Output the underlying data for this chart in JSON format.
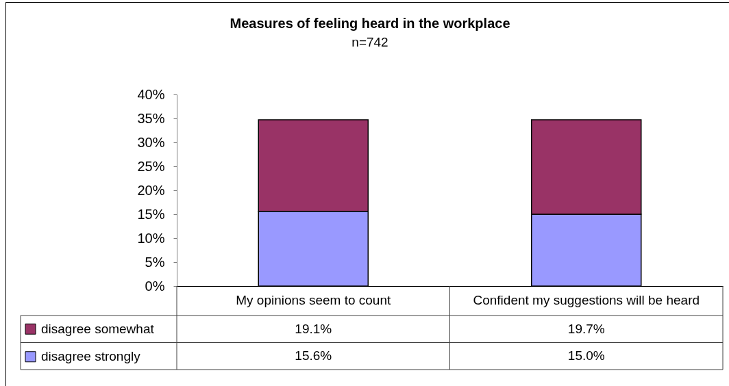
{
  "chart_data": {
    "type": "bar",
    "title": "Measures of feeling heard in the workplace",
    "subtitle": "n=742",
    "categories": [
      "My opinions seem to count",
      "Confident my suggestions will be heard"
    ],
    "stacked": true,
    "series": [
      {
        "name": "disagree strongly",
        "color": "#9999ff",
        "values": [
          15.6,
          15.0
        ],
        "value_labels": [
          "15.6%",
          "15.0%"
        ]
      },
      {
        "name": "disagree somewhat",
        "color": "#993366",
        "values": [
          19.1,
          19.7
        ],
        "value_labels": [
          "19.1%",
          "19.7%"
        ]
      }
    ],
    "ylim": [
      0,
      40
    ],
    "yticks": [
      {
        "value": 0,
        "label": "0%"
      },
      {
        "value": 5,
        "label": "5%"
      },
      {
        "value": 10,
        "label": "10%"
      },
      {
        "value": 15,
        "label": "15%"
      },
      {
        "value": 20,
        "label": "20%"
      },
      {
        "value": 25,
        "label": "25%"
      },
      {
        "value": 30,
        "label": "30%"
      },
      {
        "value": 35,
        "label": "35%"
      },
      {
        "value": 40,
        "label": "40%"
      }
    ],
    "legend": "bottom left"
  }
}
